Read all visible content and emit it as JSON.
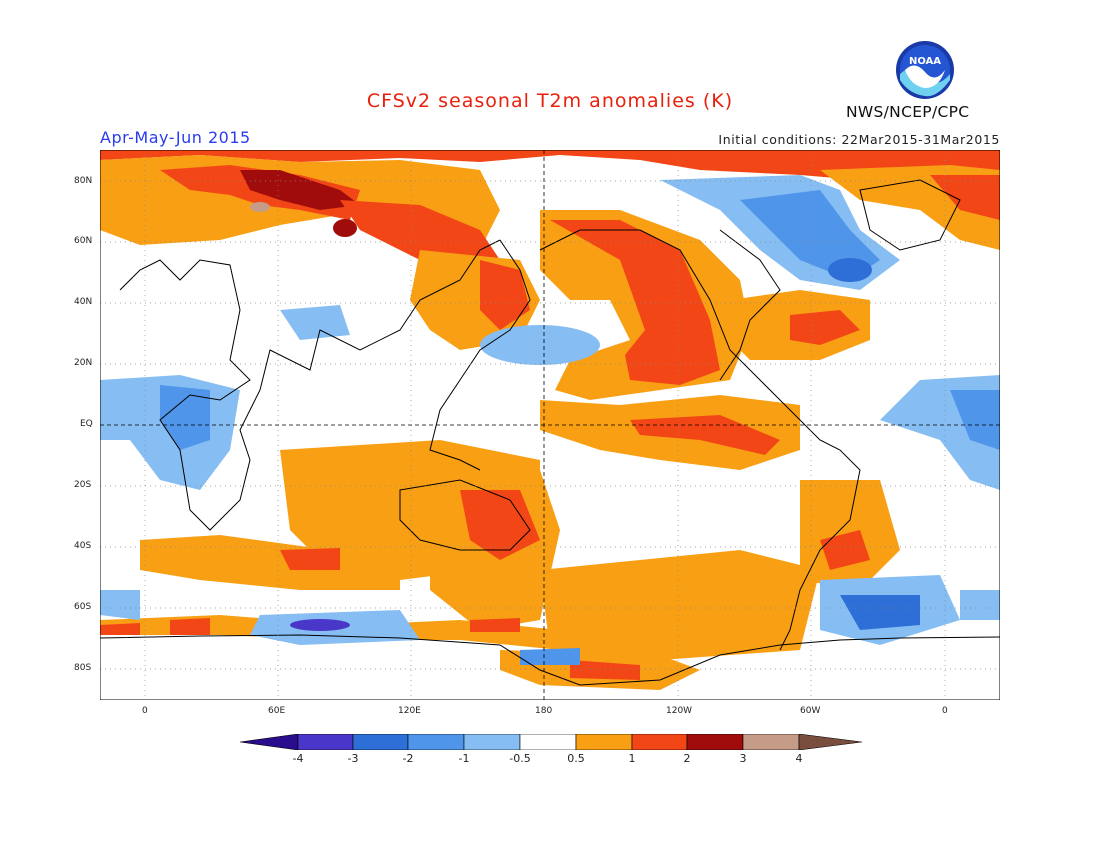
{
  "header": {
    "title": "CFSv2 seasonal T2m anomalies (K)",
    "season": "Apr-May-Jun 2015",
    "initial_conditions": "Initial conditions: 22Mar2015-31Mar2015",
    "agency": "NWS/NCEP/CPC",
    "logo_text": "NOAA"
  },
  "map": {
    "lat_labels": [
      "80N",
      "60N",
      "40N",
      "20N",
      "EQ",
      "20S",
      "40S",
      "60S",
      "80S"
    ],
    "lat_values": [
      80,
      60,
      40,
      20,
      0,
      -20,
      -40,
      -60,
      -80
    ],
    "lon_labels": [
      "0",
      "60E",
      "120E",
      "180",
      "120W",
      "60W",
      "0"
    ],
    "lon_values": [
      0,
      60,
      120,
      180,
      240,
      300,
      360
    ]
  },
  "colorbar": {
    "labels": [
      "-4",
      "-3",
      "-2",
      "-1",
      "-0.5",
      "0.5",
      "1",
      "2",
      "3",
      "4"
    ],
    "colors": [
      "#2a0d8c",
      "#4a36c8",
      "#2d6fd6",
      "#4f95ea",
      "#86bdf2",
      "#ffffff",
      "#f99f14",
      "#f24616",
      "#a00c0c",
      "#c49c88",
      "#7a4e3e"
    ]
  },
  "colors": {
    "title": "#e8200c",
    "season": "#2a3cf0",
    "warm1": "#f99f14",
    "warm2": "#f24616",
    "warm3": "#a00c0c",
    "warm4": "#c49c88",
    "cool1": "#86bdf2",
    "cool2": "#4f95ea",
    "cool3": "#2d6fd6",
    "cool4": "#4a36c8"
  }
}
